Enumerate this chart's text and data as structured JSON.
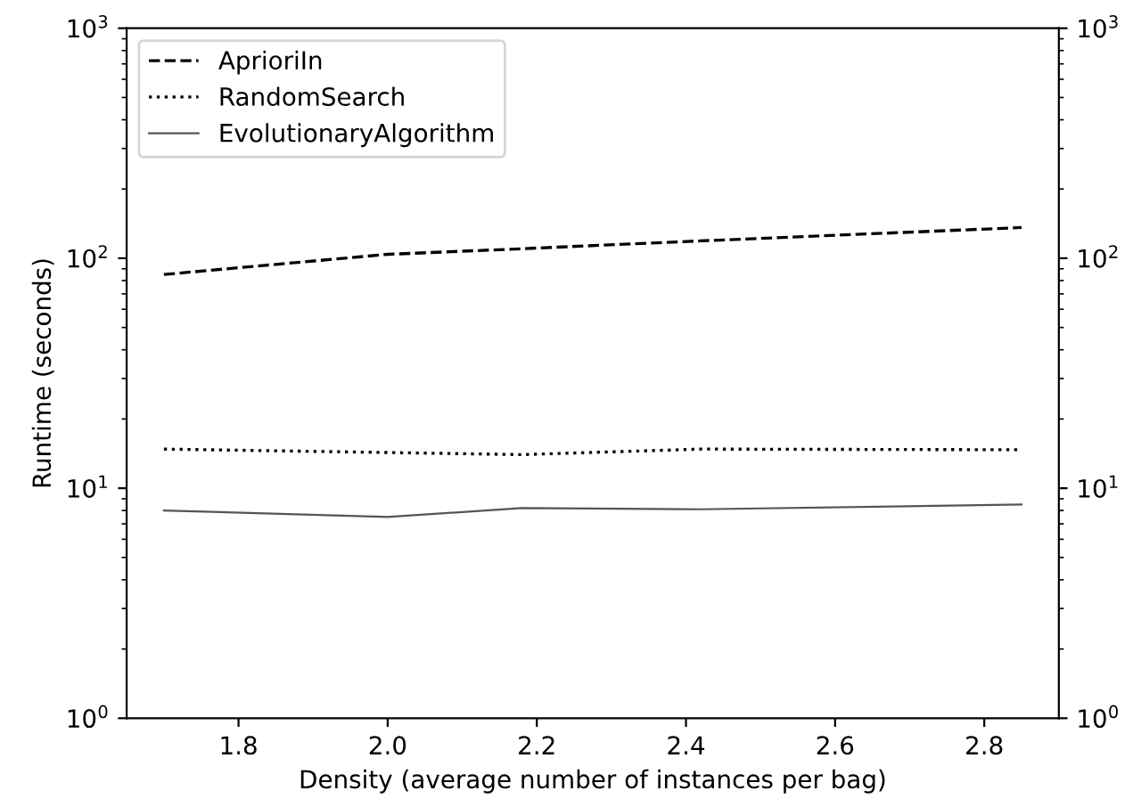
{
  "chart_data": {
    "type": "line",
    "xlabel": "Density (average number of instances per bag)",
    "ylabel": "Runtime (seconds)",
    "x": [
      1.7,
      2.0,
      2.18,
      2.42,
      2.85
    ],
    "series": [
      {
        "name": "AprioriIn",
        "color": "#000000",
        "line_style": "dashed",
        "values": [
          85,
          104,
          110,
          119,
          136
        ]
      },
      {
        "name": "RandomSearch",
        "color": "#000000",
        "line_style": "dotted",
        "values": [
          14.8,
          14.3,
          14.0,
          14.8,
          14.7
        ]
      },
      {
        "name": "EvolutionaryAlgorithm",
        "color": "#555555",
        "line_style": "solid",
        "values": [
          8.0,
          7.5,
          8.2,
          8.1,
          8.5
        ]
      }
    ],
    "log": "y",
    "xlim": [
      1.65,
      2.9
    ],
    "xticks": [
      {
        "value": 1.8,
        "label": "1.8"
      },
      {
        "value": 2.0,
        "label": "2.0"
      },
      {
        "value": 2.2,
        "label": "2.2"
      },
      {
        "value": 2.4,
        "label": "2.4"
      },
      {
        "value": 2.6,
        "label": "2.6"
      },
      {
        "value": 2.8,
        "label": "2.8"
      }
    ],
    "ylim": [
      1,
      1000
    ],
    "yticks": [
      {
        "value": 1,
        "label": "10$^{0}$"
      },
      {
        "value": 10,
        "label": "10$^{1}$"
      },
      {
        "value": 100,
        "label": "10$^{2}$"
      },
      {
        "value": 1000,
        "label": "10$^{3}$"
      }
    ],
    "legend": "top left",
    "grid": false,
    "marker": "none"
  }
}
